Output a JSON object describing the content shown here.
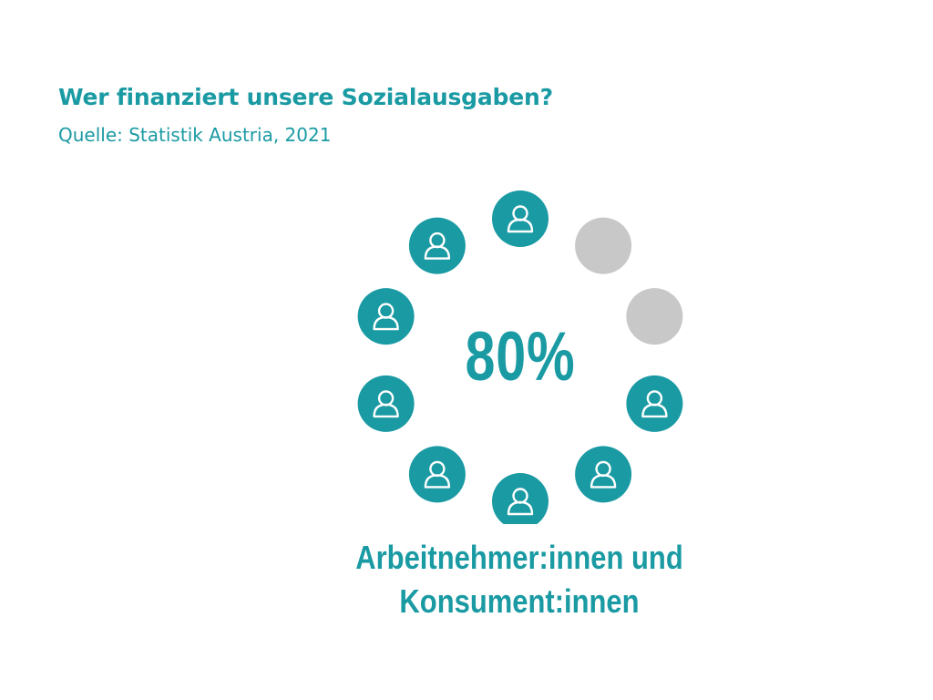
{
  "header": {
    "title": "Wer finanziert unsere Sozialausgaben?",
    "source": "Quelle: Statistik Austria, 2021"
  },
  "chart_data": {
    "type": "pictogram",
    "value_label": "80%",
    "value_percent": 80,
    "total_icons": 10,
    "filled_icons": 8,
    "icon": "person-icon",
    "category_label_line1": "Arbeitnehmer:innen und",
    "category_label_line2": "Konsument:innen"
  },
  "colors": {
    "accent": "#1a9aa3",
    "inactive": "#c8c8c8",
    "icon_stroke": "#ffffff"
  }
}
